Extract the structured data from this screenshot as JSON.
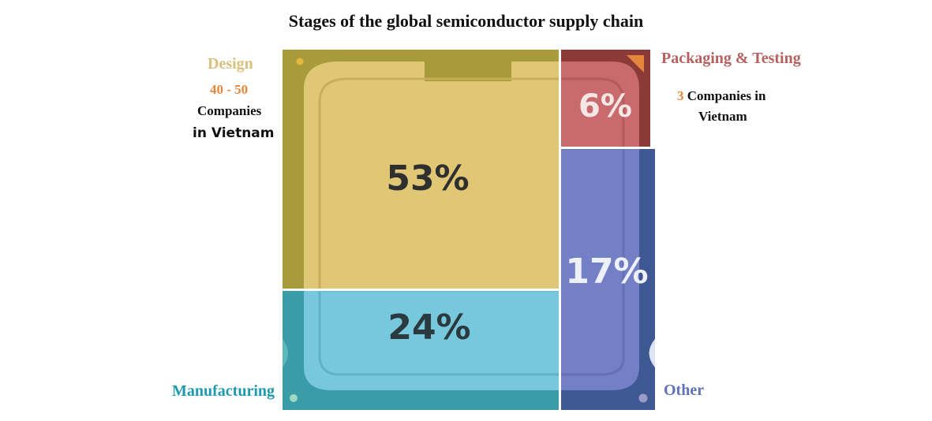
{
  "title": "Stages of the global semiconductor supply chain",
  "annotations": {
    "design": {
      "name": "Design",
      "count": "40 - 50",
      "line1": "Companies",
      "line2": "in Vietnam"
    },
    "packaging": {
      "name": "Packaging & Testing",
      "count": "3",
      "line1": "Companies in",
      "line2": "Vietnam"
    },
    "manufacturing": {
      "name": "Manufacturing"
    },
    "other": {
      "name": "Other"
    }
  },
  "colors": {
    "design": "#E0C775",
    "design_dark": "#A89B3B",
    "manufacturing": "#78C8DD",
    "manufacturing_dark": "#3A9CA6",
    "packaging": "#C96B6E",
    "packaging_dark": "#8A3B38",
    "other": "#7480C6",
    "other_dark": "#3E5893",
    "accent_orange": "#E5873A"
  },
  "chart_data": {
    "type": "treemap",
    "title": "Stages of the global semiconductor supply chain",
    "segments": [
      {
        "name": "Design",
        "value": 53,
        "label": "53%"
      },
      {
        "name": "Manufacturing",
        "value": 24,
        "label": "24%"
      },
      {
        "name": "Packaging & Testing",
        "value": 6,
        "label": "6%"
      },
      {
        "name": "Other",
        "value": 17,
        "label": "17%"
      }
    ]
  }
}
